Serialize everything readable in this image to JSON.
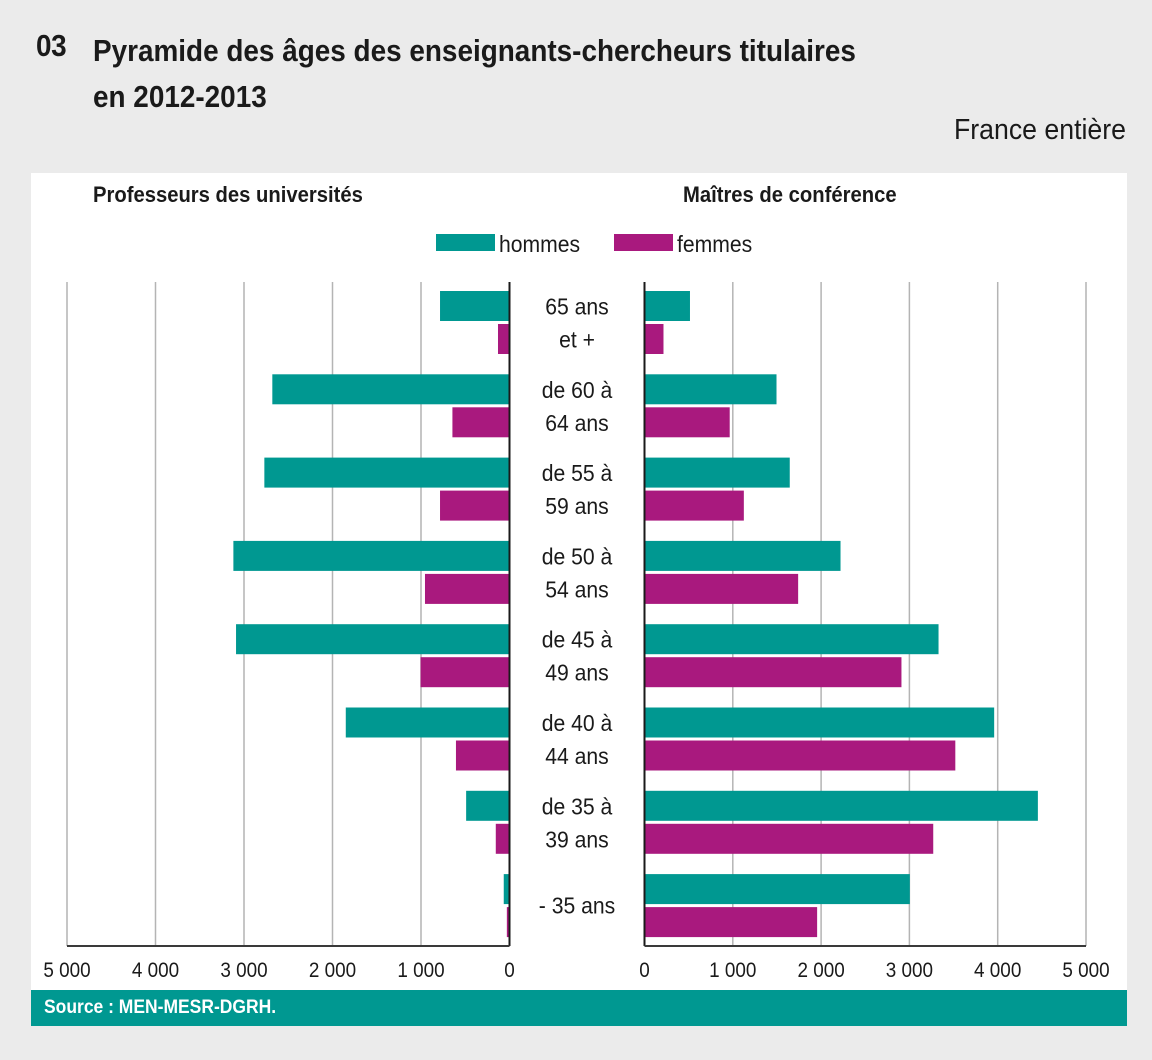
{
  "header": {
    "number": "03",
    "title_line1": "Pyramide des âges des enseignants-chercheurs titulaires",
    "title_line2": "en 2012-2013",
    "scope": "France entière"
  },
  "source": "Source : MEN-MESR-DGRH.",
  "colors": {
    "hommes": "#009891",
    "femmes": "#a9197e",
    "grid": "#b4b4b4",
    "axis": "#1a1a1a"
  },
  "chart_data": {
    "type": "bar",
    "subtype": "population-pyramid",
    "title": "Pyramide des âges des enseignants-chercheurs titulaires en 2012-2013",
    "legend": {
      "position": "top-center",
      "entries": [
        "hommes",
        "femmes"
      ]
    },
    "categories": [
      [
        "65 ans",
        "et +"
      ],
      [
        "de 60 à",
        "64 ans"
      ],
      [
        "de 55 à",
        "59 ans"
      ],
      [
        "de 50 à",
        "54 ans"
      ],
      [
        "de 45 à",
        "49 ans"
      ],
      [
        "de 40 à",
        "44 ans"
      ],
      [
        "de 35 à",
        "39 ans"
      ],
      [
        "- 35 ans"
      ]
    ],
    "panels": [
      {
        "name": "Professeurs des universités",
        "side": "left",
        "xlim": [
          0,
          5000
        ],
        "ticks": [
          5000,
          4000,
          3000,
          2000,
          1000,
          0
        ],
        "tick_labels": [
          "5 000",
          "4 000",
          "3 000",
          "2 000",
          "1 000",
          "0"
        ],
        "grid": true,
        "series": [
          {
            "name": "hommes",
            "values": [
              785,
              2680,
              2770,
              3120,
              3090,
              1850,
              490,
              65
            ]
          },
          {
            "name": "femmes",
            "values": [
              130,
              645,
              785,
              955,
              1005,
              605,
              155,
              30
            ]
          }
        ]
      },
      {
        "name": "Maîtres de conférence",
        "side": "right",
        "xlim": [
          0,
          5000
        ],
        "ticks": [
          0,
          1000,
          2000,
          3000,
          4000,
          5000
        ],
        "tick_labels": [
          "0",
          "1 000",
          "2 000",
          "3 000",
          "4 000",
          "5 000"
        ],
        "grid": true,
        "series": [
          {
            "name": "hommes",
            "values": [
              515,
              1495,
              1645,
              2220,
              3330,
              3960,
              4455,
              3005
            ]
          },
          {
            "name": "femmes",
            "values": [
              215,
              965,
              1125,
              1740,
              2910,
              3520,
              3270,
              1955
            ]
          }
        ]
      }
    ]
  }
}
